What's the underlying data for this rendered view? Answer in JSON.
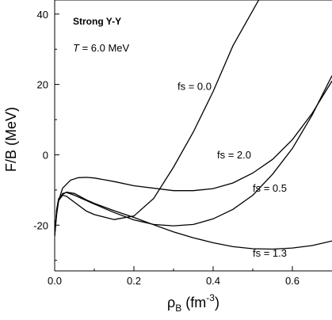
{
  "chart_data": {
    "type": "line",
    "title": "Strong Y-Y",
    "subtitle_symbol": "T",
    "subtitle_value": " = 6.0 MeV",
    "xlabel_symbol": "ρ",
    "xlabel_subscript": "B",
    "xlabel_unit_open": " (fm",
    "xlabel_unit_sup": "-3",
    "xlabel_unit_close": ")",
    "ylabel": "F/B (MeV)",
    "xlim": [
      0.0,
      0.7
    ],
    "ylim": [
      -33,
      44
    ],
    "x_ticks": [
      0.0,
      0.2,
      0.4,
      0.6
    ],
    "x_tick_labels": [
      "0.0",
      "0.2",
      "0.4",
      "0.6"
    ],
    "x_minor_ticks": [
      0.1,
      0.3,
      0.5
    ],
    "y_ticks": [
      -20,
      0,
      20,
      40
    ],
    "y_tick_labels": [
      "-20",
      "0",
      "20",
      "40"
    ],
    "y_minor_ticks": [
      -30,
      -10,
      10,
      30
    ],
    "grid": false,
    "series": [
      {
        "label": "fs = 0.0",
        "label_at": [
          0.31,
          18.5
        ],
        "x": [
          0.0,
          0.005,
          0.01,
          0.02,
          0.03,
          0.05,
          0.08,
          0.1,
          0.15,
          0.2,
          0.25,
          0.3,
          0.35,
          0.4,
          0.45,
          0.5,
          0.52
        ],
        "y": [
          -23,
          -16,
          -13,
          -11.5,
          -11.8,
          -13.5,
          -16,
          -17,
          -18.4,
          -17.4,
          -12.4,
          -3.5,
          6.5,
          18,
          31,
          41,
          45
        ]
      },
      {
        "label": "fs = 2.0",
        "label_at": [
          0.41,
          -1.0
        ],
        "x": [
          0.0,
          0.005,
          0.01,
          0.02,
          0.04,
          0.06,
          0.08,
          0.1,
          0.15,
          0.2,
          0.3,
          0.35,
          0.4,
          0.45,
          0.5,
          0.55,
          0.6,
          0.65,
          0.7
        ],
        "y": [
          -23,
          -17,
          -13,
          -9.5,
          -7.2,
          -6.5,
          -6.4,
          -6.6,
          -7.6,
          -8.8,
          -10.2,
          -10.2,
          -9.6,
          -8.0,
          -5.2,
          -1.3,
          4.3,
          11.8,
          21
        ]
      },
      {
        "label": "fs = 0.5",
        "label_at": [
          0.5,
          -10.5
        ],
        "x": [
          0.0,
          0.005,
          0.01,
          0.02,
          0.03,
          0.05,
          0.08,
          0.1,
          0.15,
          0.2,
          0.25,
          0.3,
          0.35,
          0.4,
          0.45,
          0.5,
          0.55,
          0.6,
          0.65,
          0.7
        ],
        "y": [
          -23,
          -16,
          -13,
          -11,
          -10.7,
          -11.5,
          -13,
          -14,
          -16.4,
          -18.5,
          -19.8,
          -20.2,
          -19.8,
          -18.2,
          -15.5,
          -11.5,
          -5.5,
          1.8,
          11.3,
          22.5
        ]
      },
      {
        "label": "fs = 1.3",
        "label_at": [
          0.5,
          -29.0
        ],
        "x": [
          0.0,
          0.005,
          0.01,
          0.02,
          0.03,
          0.05,
          0.08,
          0.1,
          0.15,
          0.2,
          0.25,
          0.3,
          0.35,
          0.4,
          0.45,
          0.5,
          0.55,
          0.6,
          0.65,
          0.7
        ],
        "y": [
          -23,
          -15.5,
          -12.5,
          -11.3,
          -10.6,
          -11.0,
          -12.8,
          -13.8,
          -15.9,
          -17.8,
          -19.9,
          -21.9,
          -23.6,
          -25.0,
          -26.1,
          -26.7,
          -26.8,
          -26.5,
          -25.8,
          -24.5
        ]
      }
    ]
  }
}
